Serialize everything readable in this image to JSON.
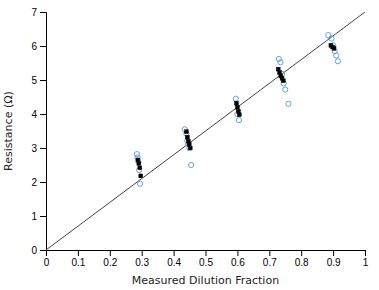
{
  "chart_data": {
    "type": "scatter",
    "xlabel": "Measured Dilution Fraction",
    "ylabel": "Resistance (Ω)",
    "xlim": [
      0,
      1
    ],
    "ylim": [
      0,
      7
    ],
    "xticks": [
      0,
      0.1,
      0.2,
      0.3,
      0.4,
      0.5,
      0.6,
      0.7,
      0.8,
      0.9,
      1
    ],
    "yticks": [
      0,
      1,
      2,
      3,
      4,
      5,
      6,
      7
    ],
    "series": [
      {
        "type": "line",
        "color": "#444444",
        "x": [
          0,
          1
        ],
        "values": [
          0,
          7
        ]
      },
      {
        "type": "scatter",
        "marker": "circle-open",
        "color": "#5599dd",
        "x": [
          0.285,
          0.287,
          0.29,
          0.292,
          0.295,
          0.435,
          0.44,
          0.443,
          0.446,
          0.45,
          0.455,
          0.595,
          0.6,
          0.605,
          0.73,
          0.735,
          0.74,
          0.745,
          0.75,
          0.76,
          0.885,
          0.895,
          0.9,
          0.905,
          0.91,
          0.915
        ],
        "values": [
          2.82,
          2.72,
          2.6,
          2.35,
          1.95,
          3.55,
          3.42,
          3.22,
          3.12,
          3.0,
          2.5,
          4.45,
          4.0,
          3.82,
          5.62,
          5.52,
          5.18,
          4.9,
          4.72,
          4.3,
          6.32,
          6.22,
          6.02,
          5.85,
          5.72,
          5.55
        ]
      },
      {
        "type": "scatter",
        "marker": "square",
        "color": "#000000",
        "x": [
          0.288,
          0.291,
          0.294,
          0.297,
          0.44,
          0.443,
          0.446,
          0.449,
          0.452,
          0.597,
          0.6,
          0.603,
          0.606,
          0.728,
          0.732,
          0.736,
          0.74,
          0.744,
          0.893,
          0.898,
          0.903
        ],
        "values": [
          2.65,
          2.55,
          2.42,
          2.18,
          3.48,
          3.32,
          3.2,
          3.1,
          3.0,
          4.32,
          4.2,
          4.08,
          3.98,
          5.32,
          5.22,
          5.12,
          5.05,
          4.98,
          6.02,
          5.97,
          5.93
        ]
      }
    ]
  }
}
